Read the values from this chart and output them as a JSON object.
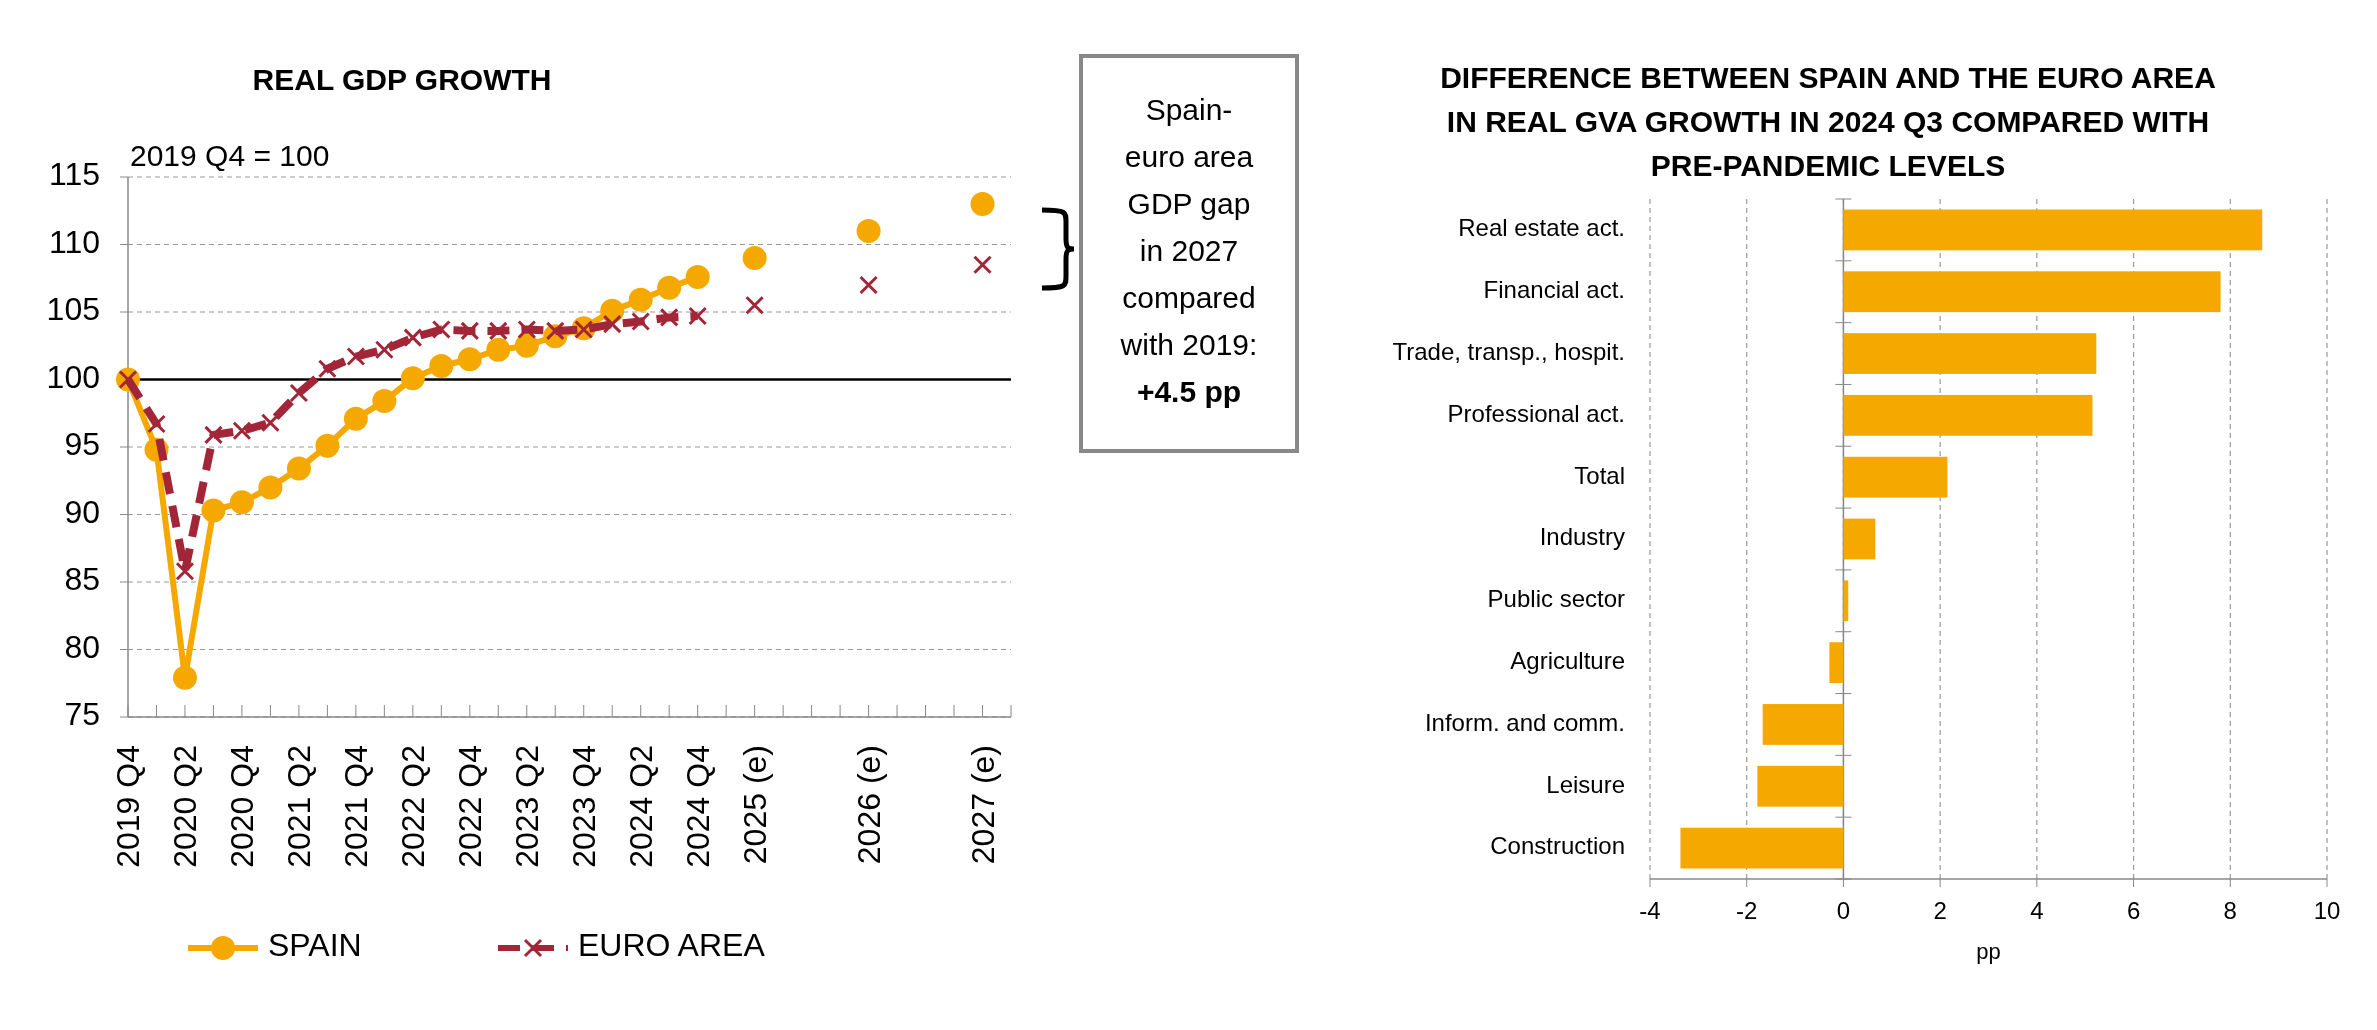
{
  "chart_data": [
    {
      "type": "line",
      "title": "REAL GDP GROWTH",
      "subtitle": "2019 Q4 = 100",
      "categories": [
        "2019 Q4",
        null,
        "2020 Q2",
        null,
        "2020 Q4",
        null,
        "2021 Q2",
        null,
        "2021 Q4",
        null,
        "2022 Q2",
        null,
        "2022 Q4",
        null,
        "2023 Q2",
        null,
        "2023 Q4",
        null,
        "2024 Q2",
        null,
        "2024 Q4",
        null,
        "2025 (e)",
        null,
        null,
        null,
        "2026 (e)",
        null,
        null,
        null,
        "2027 (e)"
      ],
      "series": [
        {
          "name": "SPAIN",
          "color": "#f5a800",
          "marker": "circle",
          "line_style": "solid",
          "values": [
            100,
            94.8,
            77.9,
            90.3,
            90.9,
            92.0,
            93.4,
            95.1,
            97.1,
            98.4,
            100.1,
            101.0,
            101.5,
            102.2,
            102.5,
            103.2,
            103.8,
            105.1,
            105.9,
            106.8,
            107.6,
            null,
            109.0,
            null,
            null,
            null,
            111.0,
            null,
            null,
            null,
            113.0
          ]
        },
        {
          "name": "EURO AREA",
          "color": "#a32638",
          "marker": "cross",
          "line_style": "dashed",
          "values": [
            100,
            96.7,
            85.8,
            95.9,
            96.2,
            96.8,
            99.0,
            100.8,
            101.7,
            102.2,
            103.1,
            103.7,
            103.6,
            103.6,
            103.7,
            103.6,
            103.7,
            104.1,
            104.3,
            104.6,
            104.7,
            null,
            105.5,
            null,
            null,
            null,
            107.0,
            null,
            null,
            null,
            108.5
          ]
        }
      ],
      "ylim": [
        75,
        115
      ],
      "yticks": [
        75,
        80,
        85,
        90,
        95,
        100,
        105,
        110,
        115
      ],
      "grid": "y",
      "legend": "bottom",
      "ref_lines": [
        {
          "axis": "y",
          "value": 100,
          "color": "#000000"
        }
      ],
      "annotations": [
        "Spain-euro area GDP gap in 2027 compared with 2019:",
        "+4.5 pp"
      ]
    },
    {
      "type": "bar",
      "orientation": "horizontal",
      "title": "DIFFERENCE BETWEEN SPAIN AND THE EURO AREA IN REAL GVA GROWTH IN 2024 Q3 COMPARED WITH PRE-PANDEMIC LEVELS",
      "categories": [
        "Real estate act.",
        "Financial act.",
        "Trade, transp., hospit.",
        "Professional act.",
        "Total",
        "Industry",
        "Public sector",
        "Agriculture",
        "Inform. and comm.",
        "Leisure",
        "Construction"
      ],
      "values": [
        8.66,
        7.8,
        5.23,
        5.15,
        2.15,
        0.66,
        0.1,
        -0.29,
        -1.67,
        -1.78,
        -3.37
      ],
      "color": "#f5a800",
      "xlim": [
        -4,
        10
      ],
      "xticks": [
        -4,
        -2,
        0,
        2,
        4,
        6,
        8,
        10
      ],
      "xlabel": "pp",
      "grid": "x"
    }
  ]
}
